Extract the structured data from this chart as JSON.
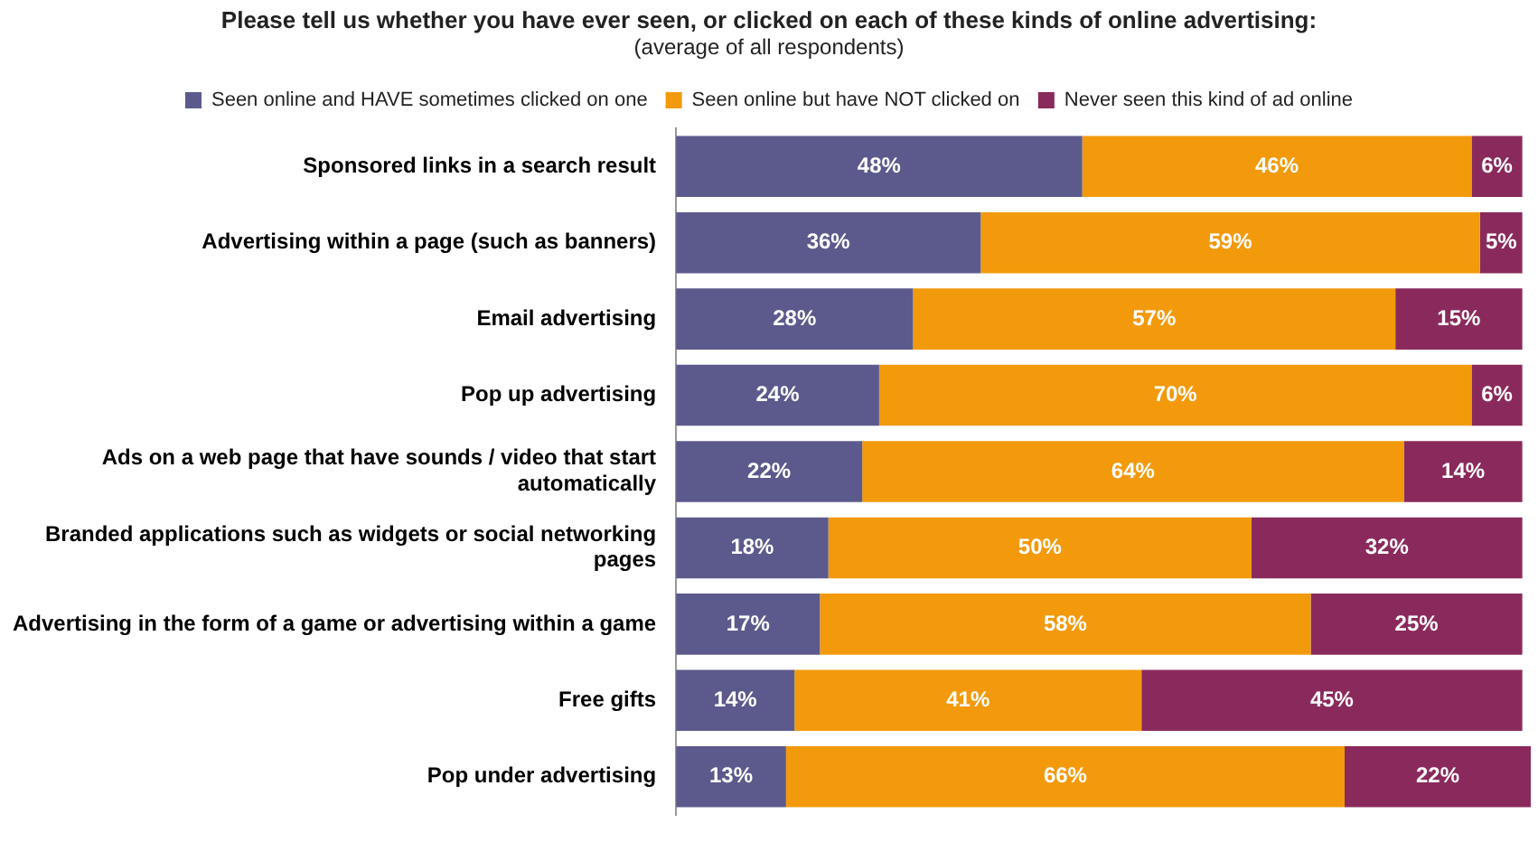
{
  "chart_data": {
    "type": "bar",
    "orientation": "horizontal",
    "stacked": true,
    "title": "Please tell us whether you have ever seen, or clicked on each of these kinds of online advertising:",
    "subtitle": "(average of all respondents)",
    "categories": [
      "Sponsored links in a search result",
      "Advertising within a page (such as banners)",
      "Email advertising",
      "Pop up advertising",
      "Ads on a web page that have sounds / video that start automatically",
      "Branded applications such as widgets or social networking pages",
      "Advertising in the form of a game or advertising within a game",
      "Free gifts",
      "Pop under advertising"
    ],
    "series": [
      {
        "name": "Seen online and HAVE sometimes clicked on one",
        "color": "#5c5a8c",
        "values": [
          48,
          36,
          28,
          24,
          22,
          18,
          17,
          14,
          13
        ],
        "value_labels": [
          "48%",
          "36%",
          "28%",
          "24%",
          "22%",
          "18%",
          "17%",
          "14%",
          "13%"
        ]
      },
      {
        "name": "Seen online but have NOT clicked on",
        "color": "#f29a0c",
        "values": [
          46,
          59,
          57,
          70,
          64,
          50,
          58,
          41,
          66
        ],
        "value_labels": [
          "46%",
          "59%",
          "57%",
          "70%",
          "64%",
          "50%",
          "58%",
          "41%",
          "66%"
        ]
      },
      {
        "name": "Never seen this kind of ad online",
        "color": "#8a2a5c",
        "values": [
          6,
          5,
          15,
          6,
          14,
          32,
          25,
          45,
          22
        ],
        "value_labels": [
          "6%",
          "5%",
          "15%",
          "6%",
          "14%",
          "32%",
          "25%",
          "45%",
          "22%"
        ]
      }
    ],
    "xlim": [
      0,
      101
    ],
    "tick_labels": "y",
    "legend": "top"
  }
}
